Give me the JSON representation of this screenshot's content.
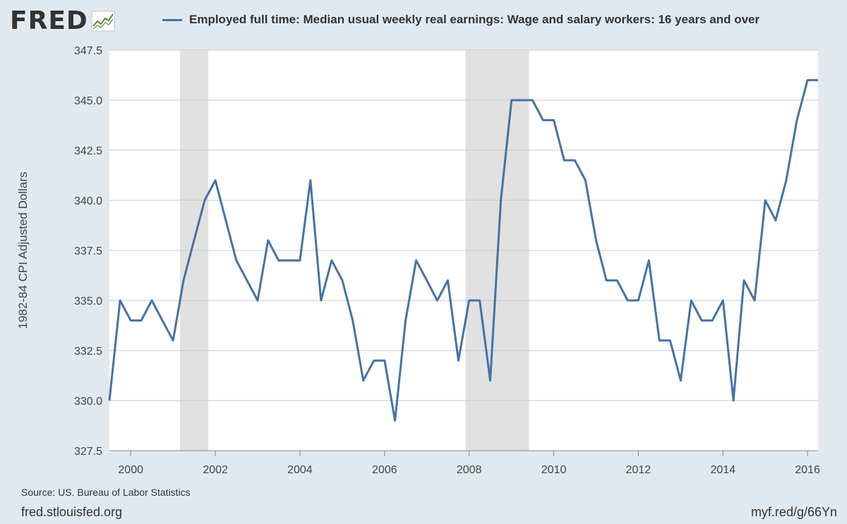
{
  "logo": {
    "text": "FRED",
    "icon": "fred-chart-icon"
  },
  "legend": {
    "label": "Employed full time: Median usual weekly real earnings: Wage and salary workers: 16 years and over",
    "color": "#4572a7"
  },
  "source": "Source: US. Bureau of Labor Statistics",
  "footer": {
    "left": "fred.stlouisfed.org",
    "right": "myf.red/g/66Yn"
  },
  "chart_data": {
    "type": "line",
    "title": "",
    "xlabel": "",
    "ylabel": "1982-84 CPI Adjusted Dollars",
    "ylim": [
      327.5,
      347.5
    ],
    "xlim": [
      "1999-07-01",
      "2016-04-01"
    ],
    "yticks": [
      "327.5",
      "330.0",
      "332.5",
      "335.0",
      "337.5",
      "340.0",
      "342.5",
      "345.0",
      "347.5"
    ],
    "xticks": [
      "2000",
      "2002",
      "2004",
      "2006",
      "2008",
      "2010",
      "2012",
      "2014",
      "2016"
    ],
    "grid": true,
    "recessions": [
      {
        "start": "2001-03-01",
        "end": "2001-11-01"
      },
      {
        "start": "2007-12-01",
        "end": "2009-06-01"
      }
    ],
    "series": [
      {
        "color": "#4572a7",
        "x": [
          "1999-07-01",
          "1999-10-01",
          "2000-01-01",
          "2000-04-01",
          "2000-07-01",
          "2000-10-01",
          "2001-01-01",
          "2001-04-01",
          "2001-07-01",
          "2001-10-01",
          "2002-01-01",
          "2002-04-01",
          "2002-07-01",
          "2002-10-01",
          "2003-01-01",
          "2003-04-01",
          "2003-07-01",
          "2003-10-01",
          "2004-01-01",
          "2004-04-01",
          "2004-07-01",
          "2004-10-01",
          "2005-01-01",
          "2005-04-01",
          "2005-07-01",
          "2005-10-01",
          "2006-01-01",
          "2006-04-01",
          "2006-07-01",
          "2006-10-01",
          "2007-01-01",
          "2007-04-01",
          "2007-07-01",
          "2007-10-01",
          "2008-01-01",
          "2008-04-01",
          "2008-07-01",
          "2008-10-01",
          "2009-01-01",
          "2009-04-01",
          "2009-07-01",
          "2009-10-01",
          "2010-01-01",
          "2010-04-01",
          "2010-07-01",
          "2010-10-01",
          "2011-01-01",
          "2011-04-01",
          "2011-07-01",
          "2011-10-01",
          "2012-01-01",
          "2012-04-01",
          "2012-07-01",
          "2012-10-01",
          "2013-01-01",
          "2013-04-01",
          "2013-07-01",
          "2013-10-01",
          "2014-01-01",
          "2014-04-01",
          "2014-07-01",
          "2014-10-01",
          "2015-01-01",
          "2015-04-01",
          "2015-07-01",
          "2015-10-01",
          "2016-01-01",
          "2016-04-01"
        ],
        "values": [
          330,
          335,
          334,
          334,
          335,
          334,
          333,
          336,
          338,
          340,
          341,
          339,
          337,
          336,
          335,
          338,
          337,
          337,
          337,
          341,
          335,
          337,
          336,
          334,
          331,
          332,
          332,
          329,
          334,
          337,
          336,
          335,
          336,
          332,
          335,
          335,
          331,
          340,
          345,
          345,
          345,
          344,
          344,
          342,
          342,
          341,
          338,
          336,
          336,
          335,
          335,
          337,
          333,
          333,
          331,
          335,
          334,
          334,
          335,
          330,
          336,
          335,
          340,
          339,
          341,
          344,
          346,
          346
        ]
      }
    ]
  }
}
